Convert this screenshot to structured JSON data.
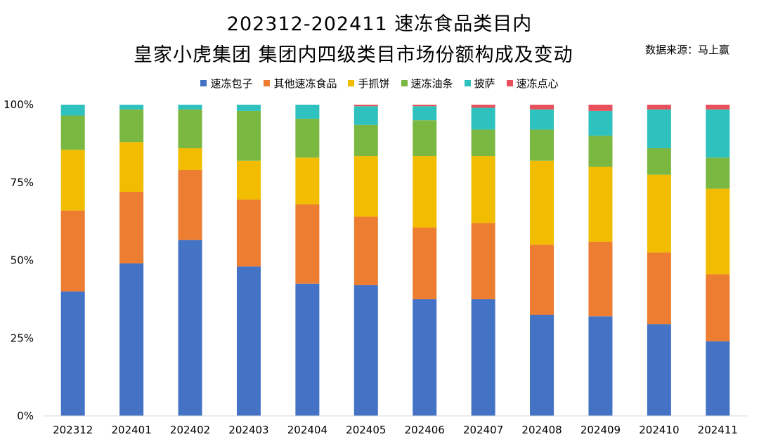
{
  "title_line1": "202312-202411 速冻食品类目内",
  "title_line2": "皇家小虎集团 集团内四级类目市场份额构成及变动",
  "source": "数据来源：马上赢",
  "chart_data": {
    "type": "bar",
    "stacked": true,
    "categories": [
      "202312",
      "202401",
      "202402",
      "202403",
      "202404",
      "202405",
      "202406",
      "202407",
      "202408",
      "202409",
      "202410",
      "202411"
    ],
    "y_tick_labels": [
      "0%",
      "25%",
      "50%",
      "75%",
      "100%"
    ],
    "ylim": [
      0,
      100
    ],
    "grid": false,
    "legend_position": "top",
    "series": [
      {
        "name": "速冻包子",
        "color": "#4472C4",
        "values": [
          40,
          49,
          56.5,
          48,
          42.5,
          42,
          37.5,
          37.5,
          32.5,
          32,
          29.5,
          24
        ]
      },
      {
        "name": "其他速冻食品",
        "color": "#ED7D31",
        "values": [
          26,
          23,
          22.5,
          21.5,
          25.5,
          22,
          23,
          24.5,
          22.5,
          24,
          23,
          21.5
        ]
      },
      {
        "name": "手抓饼",
        "color": "#F2BC00",
        "values": [
          19.5,
          16,
          7,
          12.5,
          15,
          19.5,
          23,
          21.5,
          27,
          24,
          25,
          27.5
        ]
      },
      {
        "name": "速冻油条",
        "color": "#7BB841",
        "values": [
          11,
          10.5,
          12.5,
          16,
          12.5,
          10,
          11.5,
          8.5,
          10,
          10,
          8.5,
          10
        ]
      },
      {
        "name": "披萨",
        "color": "#2FC1BE",
        "values": [
          3.5,
          1.5,
          1.5,
          2,
          4.5,
          6,
          4.5,
          7,
          6.5,
          8,
          12.5,
          15.5
        ]
      },
      {
        "name": "速冻点心",
        "color": "#E8505B",
        "values": [
          0,
          0,
          0,
          0,
          0,
          0.5,
          0.5,
          1,
          1.5,
          2,
          1.5,
          1.5
        ]
      }
    ]
  }
}
